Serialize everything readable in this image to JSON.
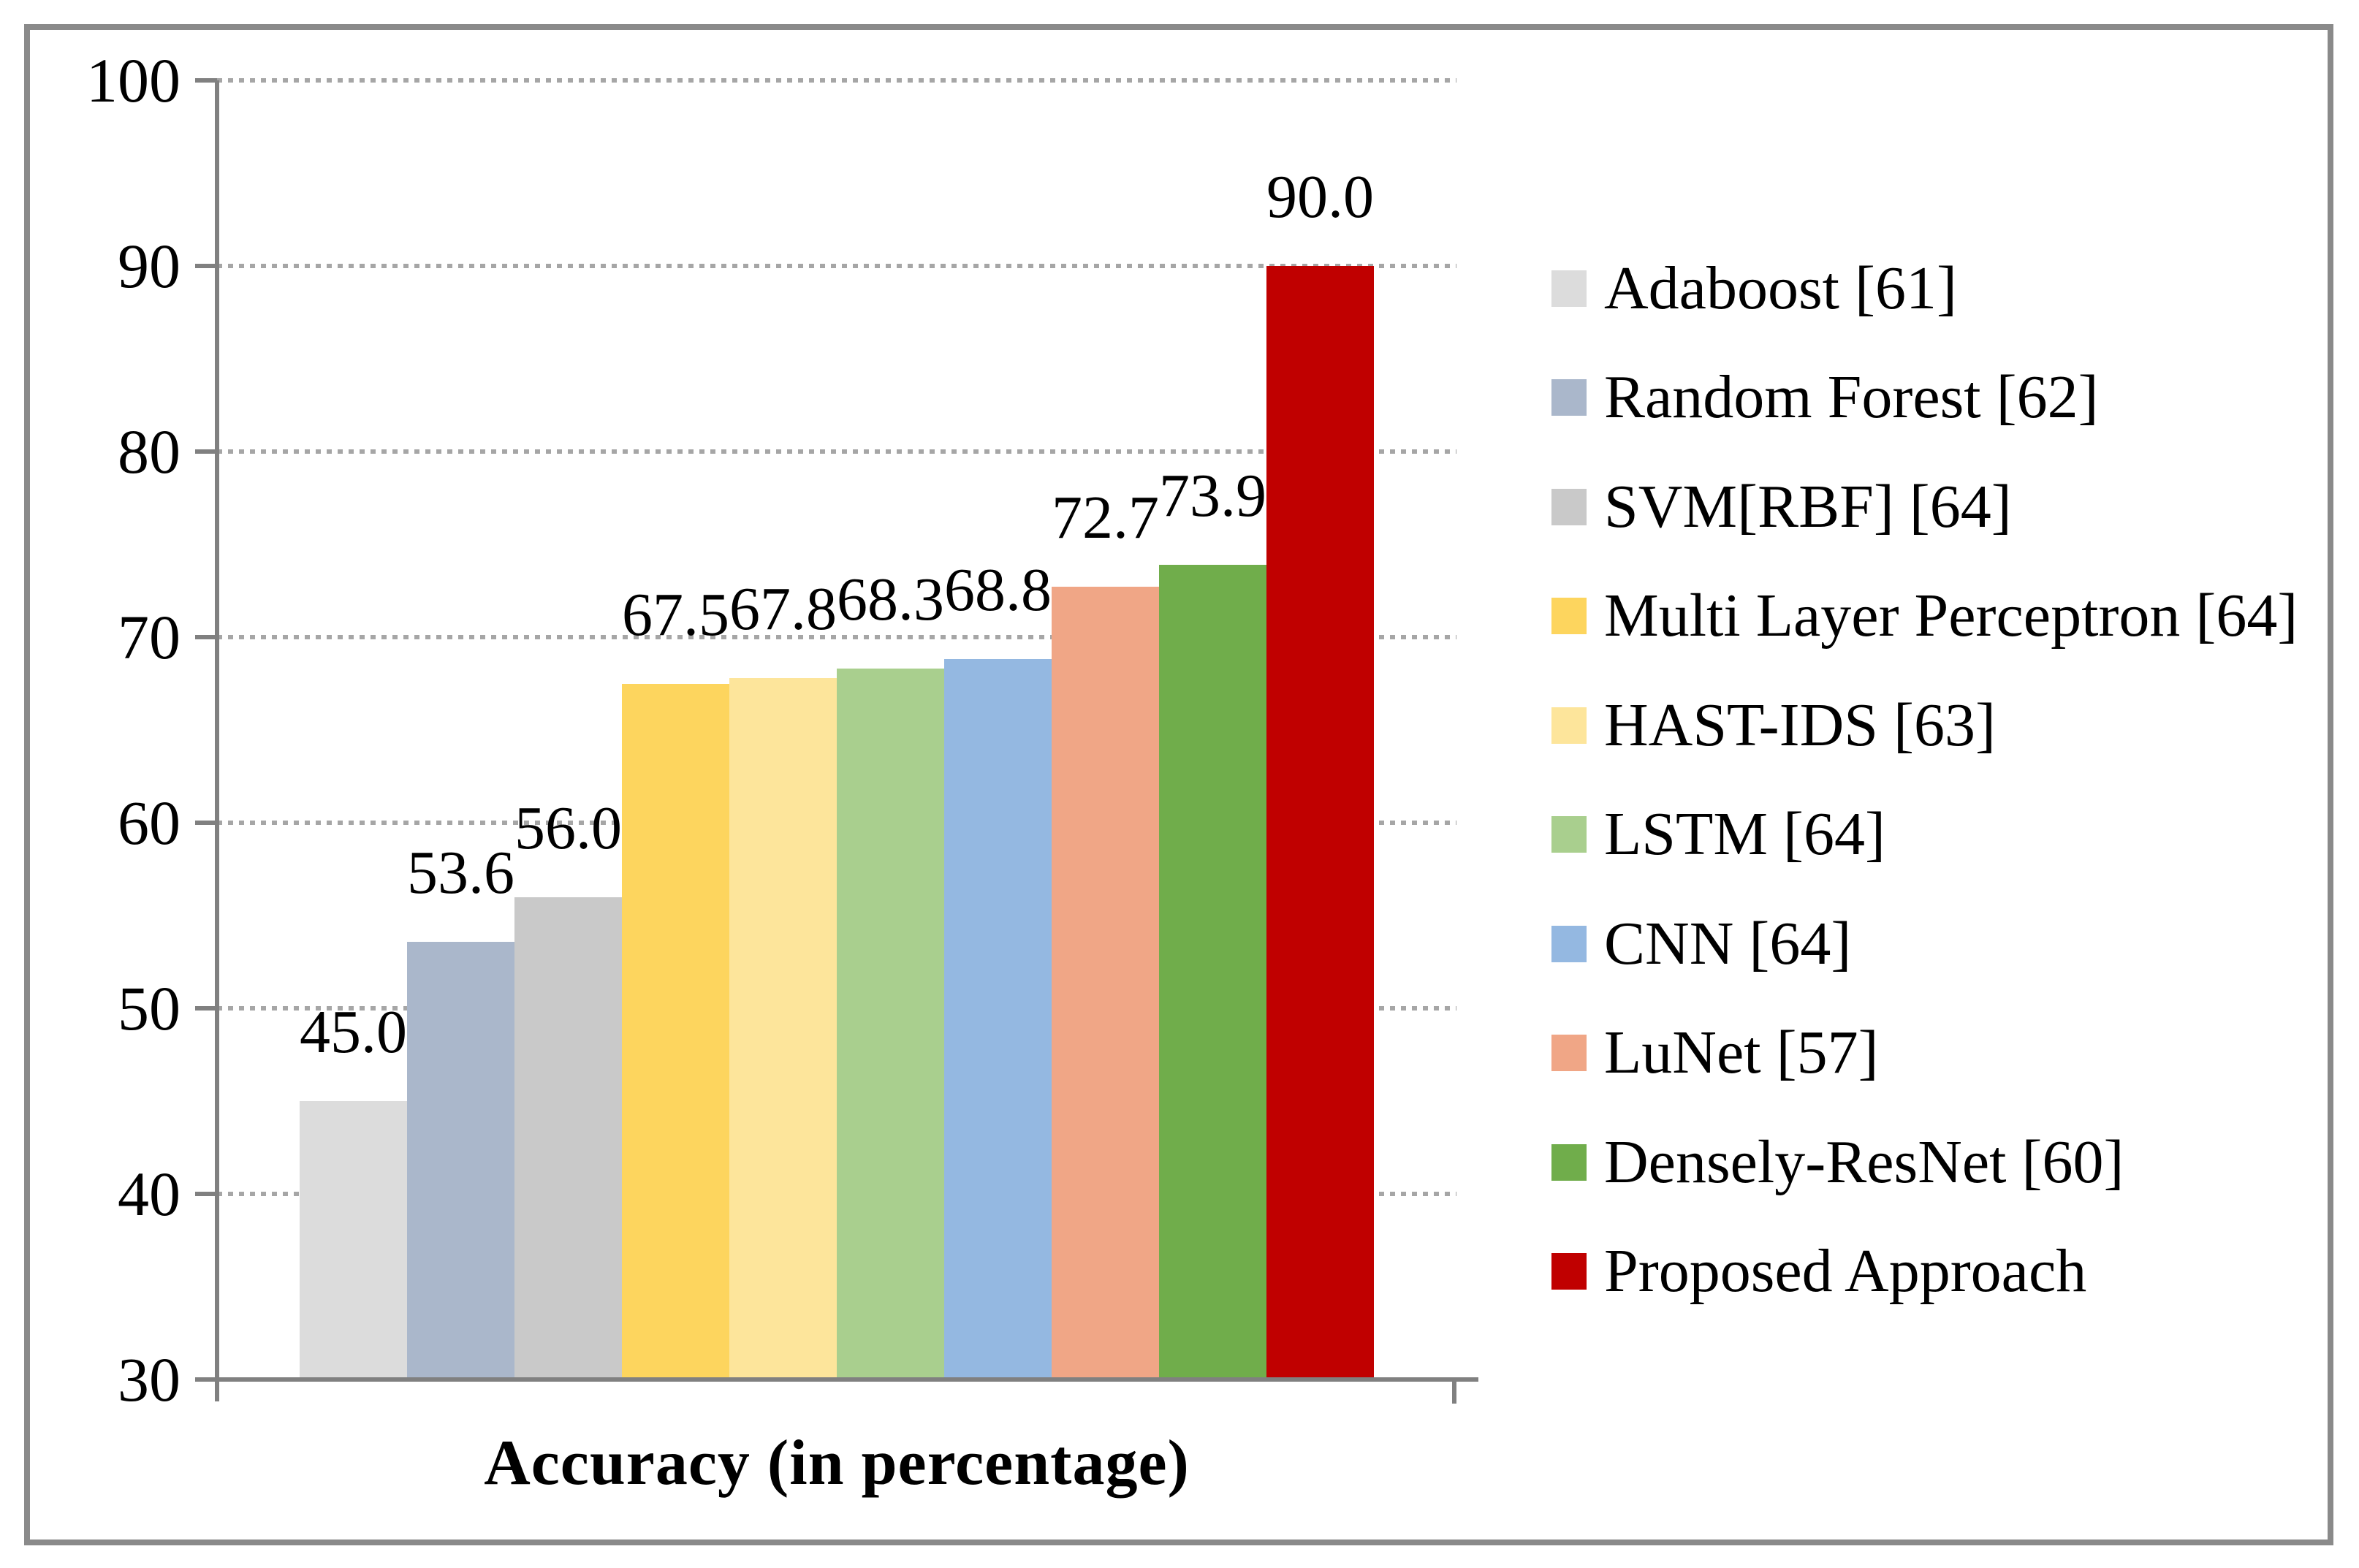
{
  "chart_data": {
    "type": "bar",
    "title": "",
    "xlabel": "Accuracy (in percentage)",
    "ylabel": "",
    "ylim": [
      30,
      100
    ],
    "yticks": [
      30,
      40,
      50,
      60,
      70,
      80,
      90,
      100
    ],
    "grid": "horizontal dotted gridlines at 40 through 100, solid baseline at 30",
    "legend_position": "right",
    "bar_baseline": 30,
    "series": [
      {
        "label": "Adaboost [61]",
        "value": 45.0,
        "value_label": "45.0",
        "color": "#dcdcdc"
      },
      {
        "label": "Random Forest [62]",
        "value": 53.6,
        "value_label": "53.6",
        "color": "#aab7cb"
      },
      {
        "label": "SVM[RBF] [64]",
        "value": 56.0,
        "value_label": "56.0",
        "color": "#c9c9c9"
      },
      {
        "label": "Multi Layer Perceptron [64]",
        "value": 67.5,
        "value_label": "67.5",
        "color": "#fdd55e"
      },
      {
        "label": "HAST-IDS [63]",
        "value": 67.8,
        "value_label": "67.8",
        "color": "#fde59b"
      },
      {
        "label": "LSTM [64]",
        "value": 68.3,
        "value_label": "68.3",
        "color": "#a9cf8e"
      },
      {
        "label": "CNN [64]",
        "value": 68.8,
        "value_label": "68.8",
        "color": "#94b8e1"
      },
      {
        "label": "LuNet [57]",
        "value": 72.7,
        "value_label": "72.7",
        "color": "#f0a686"
      },
      {
        "label": "Densely-ResNet [60]",
        "value": 73.9,
        "value_label": "73.9",
        "color": "#70ad4b"
      },
      {
        "label": "Proposed Approach",
        "value": 90.0,
        "value_label": "90.0",
        "color": "#c00000"
      }
    ]
  },
  "style_colors": {
    "axis": "#808080",
    "gridline": "#a6a6a6",
    "frame_border": "#8a8a8a",
    "text": "#000000",
    "background": "#ffffff"
  }
}
